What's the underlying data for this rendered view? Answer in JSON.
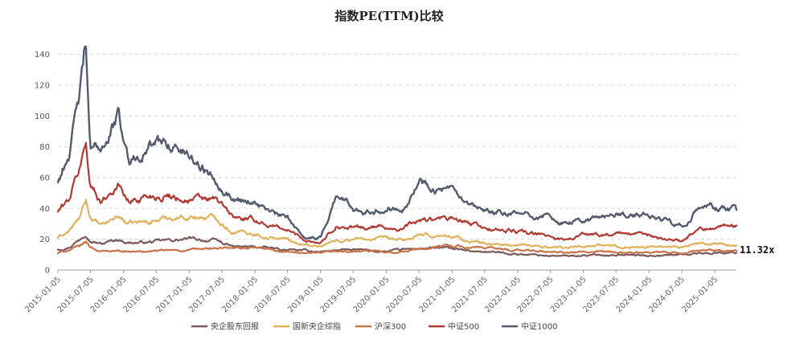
{
  "chart_data": {
    "type": "line",
    "title": "指数PE(TTM)比较",
    "ylim": [
      0,
      145
    ],
    "yticks": [
      0,
      20,
      40,
      60,
      80,
      100,
      120,
      140
    ],
    "grid": "horizontal dashed",
    "legend_position": "bottom",
    "x_start": "2015-01-05",
    "x_end": "2025-05-05",
    "x_tick_labels": [
      "2015-01-05",
      "2015-07-05",
      "2016-01-05",
      "2016-07-05",
      "2017-01-05",
      "2017-07-05",
      "2018-01-05",
      "2018-07-05",
      "2019-01-05",
      "2019-07-05",
      "2020-01-05",
      "2020-07-05",
      "2021-01-05",
      "2021-07-05",
      "2022-01-05",
      "2022-07-05",
      "2023-01-05",
      "2023-07-05",
      "2024-01-05",
      "2024-07-05",
      "2025-01-05"
    ],
    "end_annotation": "11.32x",
    "series": [
      {
        "name": "央企股东回报",
        "color": "#7a5a5c",
        "x": [
          "2015-01-05",
          "2015-03-05",
          "2015-05-05",
          "2015-06-10",
          "2015-07-05",
          "2015-09-05",
          "2015-12-05",
          "2016-02-05",
          "2016-05-05",
          "2016-09-05",
          "2017-01-05",
          "2017-06-05",
          "2017-09-05",
          "2018-01-05",
          "2018-04-05",
          "2018-07-05",
          "2018-10-05",
          "2019-01-05",
          "2019-04-05",
          "2019-07-05",
          "2020-01-05",
          "2020-04-05",
          "2020-07-05",
          "2021-01-05",
          "2021-04-05",
          "2021-07-05",
          "2022-01-05",
          "2022-06-05",
          "2022-10-05",
          "2023-01-05",
          "2023-07-05",
          "2024-01-05",
          "2024-07-05",
          "2024-10-05",
          "2025-01-05",
          "2025-05-05"
        ],
        "y": [
          13.5,
          15,
          20,
          25,
          20,
          17,
          20,
          18,
          18,
          19,
          20,
          19,
          15,
          15,
          14,
          13,
          12.5,
          12,
          13,
          13,
          12,
          13,
          14,
          14,
          12,
          12,
          10.5,
          9.5,
          9,
          9.5,
          10,
          9.5,
          10,
          11,
          11.3,
          11.32
        ]
      },
      {
        "name": "国新央企综指",
        "color": "#e0b25c",
        "x": [
          "2015-01-05",
          "2015-03-05",
          "2015-05-05",
          "2015-06-10",
          "2015-07-05",
          "2015-09-05",
          "2015-12-05",
          "2016-02-05",
          "2016-05-05",
          "2016-09-05",
          "2017-01-05",
          "2017-06-05",
          "2017-09-05",
          "2018-01-05",
          "2018-04-05",
          "2018-07-05",
          "2018-10-05",
          "2019-01-05",
          "2019-04-05",
          "2019-07-05",
          "2020-01-05",
          "2020-04-05",
          "2020-07-05",
          "2021-01-05",
          "2021-04-05",
          "2021-07-05",
          "2022-01-05",
          "2022-06-05",
          "2022-10-05",
          "2023-01-05",
          "2023-07-05",
          "2024-01-05",
          "2024-07-05",
          "2024-10-05",
          "2025-01-05",
          "2025-05-05"
        ],
        "y": [
          21,
          25,
          33,
          44,
          34,
          28,
          35,
          30,
          31,
          34,
          35,
          34,
          25,
          24,
          21,
          20,
          16,
          16,
          19,
          20,
          20,
          19,
          22,
          22,
          19,
          17,
          16,
          15,
          15,
          16,
          15.5,
          15,
          15.5,
          17,
          16.5,
          16
        ]
      },
      {
        "name": "沪深300",
        "color": "#c8734a",
        "x": [
          "2015-01-05",
          "2015-03-05",
          "2015-05-05",
          "2015-06-10",
          "2015-07-05",
          "2015-09-05",
          "2015-12-05",
          "2016-02-05",
          "2016-05-05",
          "2016-09-05",
          "2017-01-05",
          "2017-06-05",
          "2017-09-05",
          "2018-01-05",
          "2018-04-05",
          "2018-07-05",
          "2018-10-05",
          "2019-01-05",
          "2019-04-05",
          "2019-07-05",
          "2020-01-05",
          "2020-04-05",
          "2020-07-05",
          "2021-01-05",
          "2021-04-05",
          "2021-07-05",
          "2022-01-05",
          "2022-06-05",
          "2022-10-05",
          "2023-01-05",
          "2023-07-05",
          "2024-01-05",
          "2024-07-05",
          "2024-10-05",
          "2025-01-05",
          "2025-05-05"
        ],
        "y": [
          11,
          13,
          15,
          18,
          15,
          12,
          13,
          12,
          12,
          12.5,
          13,
          14,
          14,
          14.5,
          13,
          12,
          10.5,
          10.5,
          12,
          12,
          12,
          12,
          14,
          16,
          15,
          14,
          13,
          12,
          11,
          11.5,
          11.5,
          11,
          11,
          12.5,
          12.5,
          12.5
        ]
      },
      {
        "name": "中证500",
        "color": "#b03a32",
        "x": [
          "2015-01-05",
          "2015-03-05",
          "2015-05-05",
          "2015-06-10",
          "2015-07-05",
          "2015-09-05",
          "2015-12-05",
          "2016-02-05",
          "2016-05-05",
          "2016-09-05",
          "2017-01-05",
          "2017-06-05",
          "2017-09-05",
          "2018-01-05",
          "2018-04-05",
          "2018-07-05",
          "2018-10-05",
          "2019-01-05",
          "2019-04-05",
          "2019-07-05",
          "2020-01-05",
          "2020-04-05",
          "2020-07-05",
          "2021-01-05",
          "2021-04-05",
          "2021-07-05",
          "2022-01-05",
          "2022-06-05",
          "2022-10-05",
          "2023-01-05",
          "2023-07-05",
          "2024-01-05",
          "2024-07-05",
          "2024-10-05",
          "2025-01-05",
          "2025-05-05"
        ],
        "y": [
          38,
          45,
          65,
          82,
          55,
          45,
          56,
          44,
          48,
          49,
          46,
          45,
          34,
          32,
          29,
          26,
          20,
          18,
          29,
          27,
          28,
          27,
          32,
          33,
          30,
          27,
          25,
          22,
          20,
          23,
          24,
          22,
          19,
          27,
          28,
          29
        ]
      },
      {
        "name": "中证1000",
        "color": "#545b6f",
        "x": [
          "2015-01-05",
          "2015-03-05",
          "2015-05-05",
          "2015-06-10",
          "2015-07-05",
          "2015-09-05",
          "2015-12-05",
          "2016-02-05",
          "2016-05-05",
          "2016-09-05",
          "2017-01-05",
          "2017-06-05",
          "2017-09-05",
          "2018-01-05",
          "2018-04-05",
          "2018-07-05",
          "2018-10-05",
          "2019-01-05",
          "2019-04-05",
          "2019-07-05",
          "2020-01-05",
          "2020-04-05",
          "2020-07-05",
          "2021-01-05",
          "2021-04-05",
          "2021-07-05",
          "2022-01-05",
          "2022-06-05",
          "2022-10-05",
          "2023-01-05",
          "2023-07-05",
          "2024-01-05",
          "2024-07-05",
          "2024-10-05",
          "2025-01-05",
          "2025-05-05"
        ],
        "y": [
          57,
          75,
          110,
          145,
          75,
          80,
          100,
          70,
          80,
          83,
          75,
          60,
          47,
          45,
          37,
          33,
          22,
          21,
          50,
          40,
          40,
          42,
          58,
          50,
          40,
          37,
          36,
          35,
          30,
          32,
          36,
          35,
          29,
          40,
          40,
          39
        ]
      }
    ]
  }
}
